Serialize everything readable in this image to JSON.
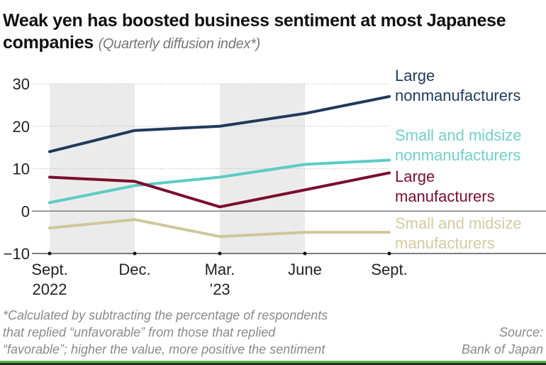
{
  "chart_data": {
    "type": "line",
    "title": "Weak yen has boosted business sentiment at most Japanese companies",
    "subtitle": "(Quarterly diffusion index*)",
    "categories": [
      [
        "Sept.",
        "2022"
      ],
      [
        "Dec.",
        ""
      ],
      [
        "Mar.",
        "’23"
      ],
      [
        "June",
        ""
      ],
      [
        "Sept.",
        ""
      ]
    ],
    "ylim": [
      -10,
      30
    ],
    "yticks": [
      30,
      20,
      10,
      0,
      -10
    ],
    "ytick_labels": [
      "30",
      "20",
      "10",
      "0",
      "−10"
    ],
    "series": [
      {
        "name_lines": [
          "Large",
          "nonmanufacturers"
        ],
        "color": "#1f3a5c",
        "label_color": "#1f3a5c",
        "values": [
          14,
          19,
          20,
          23,
          27
        ]
      },
      {
        "name_lines": [
          "Small and midsize",
          "nonmanufacturers"
        ],
        "color": "#5ccbc5",
        "label_color": "#72d0cb",
        "values": [
          2,
          6,
          8,
          11,
          12
        ]
      },
      {
        "name_lines": [
          "Large",
          "manufacturers"
        ],
        "color": "#7b0d30",
        "label_color": "#7b0d30",
        "values": [
          8,
          7,
          1,
          5,
          9
        ]
      },
      {
        "name_lines": [
          "Small and midsize",
          "manufacturers"
        ],
        "color": "#cfc79b",
        "label_color": "#d3cc9f",
        "values": [
          -4,
          -2,
          -6,
          -5,
          -5
        ]
      }
    ],
    "shaded_periods": [
      [
        0,
        1
      ],
      [
        2,
        3
      ]
    ],
    "footnote": [
      "*Calculated by subtracting the percentage of respondents",
      "that replied “unfavorable” from those that replied",
      "“favorable”; higher the value, more positive the sentiment"
    ],
    "source": [
      "Source:",
      "Bank of Japan"
    ]
  }
}
